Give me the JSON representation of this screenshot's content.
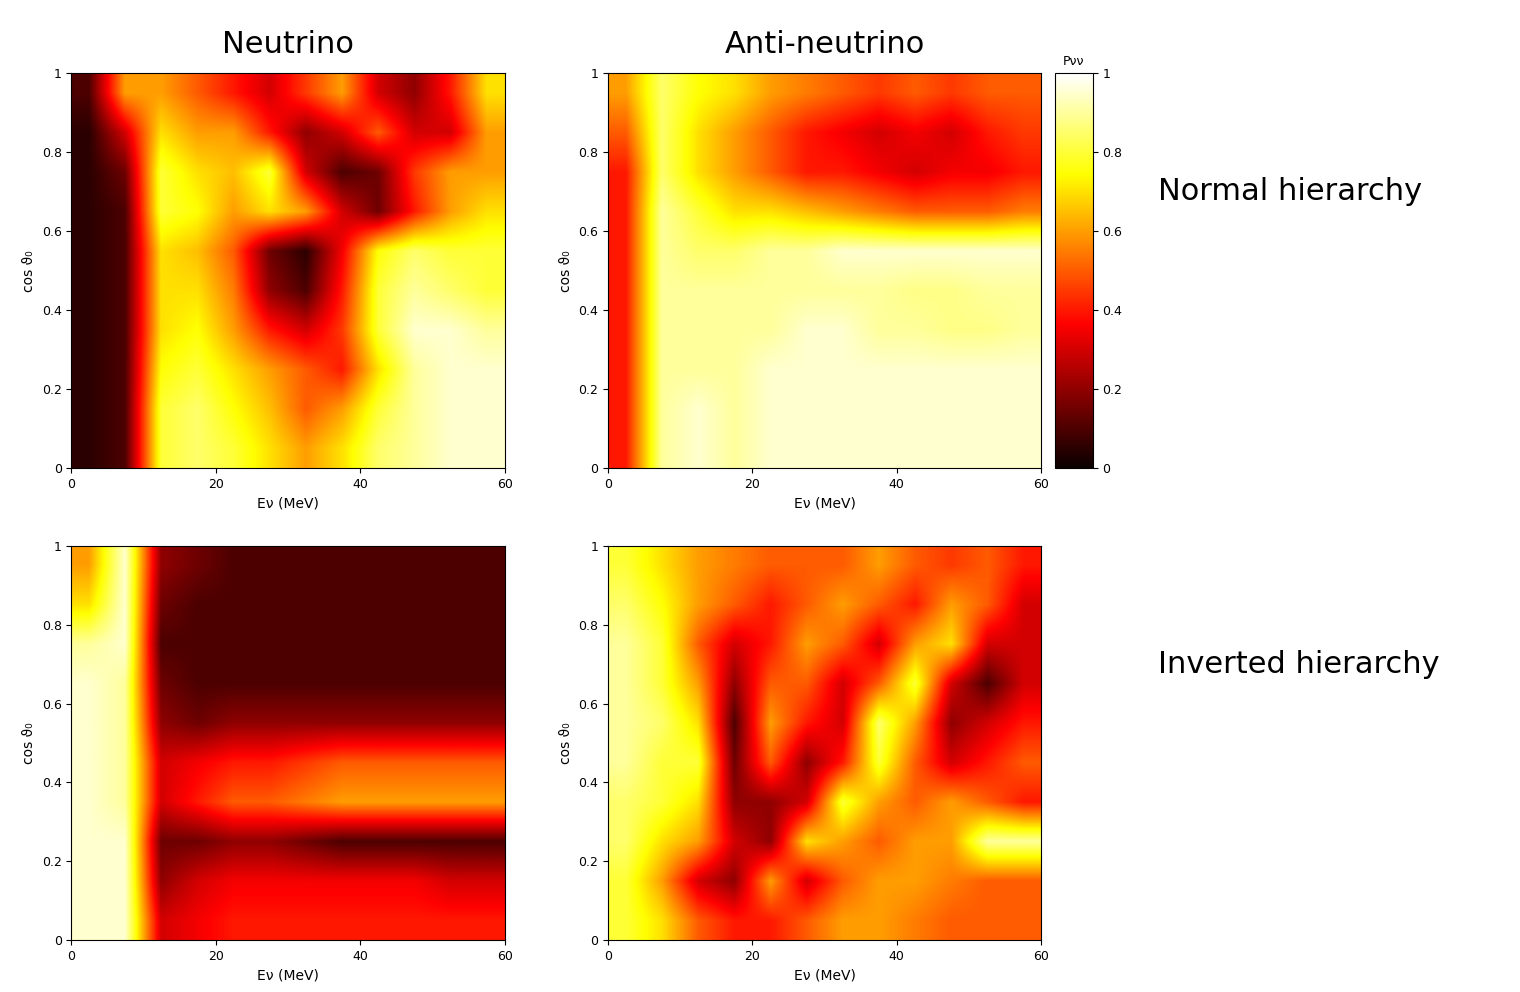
{
  "figure": {
    "column_titles": [
      "Neutrino",
      "Anti-neutrino"
    ],
    "row_titles": [
      "Normal hierarchy",
      "Inverted hierarchy"
    ],
    "colorbar": {
      "label": "Pνν",
      "range": [
        0,
        1
      ],
      "ticks": [
        0,
        0.2,
        0.4,
        0.6,
        0.8,
        1
      ]
    }
  },
  "chart_data": [
    {
      "type": "heatmap",
      "color": "hot",
      "x_label": "Eν (MeV)",
      "y_label": "cos ϑ₀",
      "xlim": [
        0,
        60
      ],
      "ylim": [
        0,
        1
      ],
      "xticks": [
        0,
        20,
        40,
        60
      ],
      "yticks": [
        0,
        0.2,
        0.4,
        0.6,
        0.8,
        1
      ],
      "cells": [
        [
          0.05,
          0.1,
          0.8,
          0.85,
          0.8,
          0.7,
          0.6,
          0.7,
          0.85,
          0.9,
          0.95,
          0.95
        ],
        [
          0.05,
          0.1,
          0.8,
          0.85,
          0.75,
          0.65,
          0.5,
          0.6,
          0.8,
          0.9,
          0.95,
          0.95
        ],
        [
          0.05,
          0.1,
          0.75,
          0.8,
          0.7,
          0.6,
          0.5,
          0.4,
          0.7,
          0.9,
          0.95,
          0.95
        ],
        [
          0.05,
          0.1,
          0.7,
          0.75,
          0.6,
          0.4,
          0.3,
          0.45,
          0.8,
          0.95,
          0.95,
          0.9
        ],
        [
          0.05,
          0.1,
          0.7,
          0.7,
          0.55,
          0.2,
          0.1,
          0.4,
          0.8,
          0.9,
          0.85,
          0.8
        ],
        [
          0.05,
          0.1,
          0.7,
          0.65,
          0.5,
          0.15,
          0.05,
          0.35,
          0.75,
          0.85,
          0.8,
          0.8
        ],
        [
          0.05,
          0.1,
          0.8,
          0.75,
          0.6,
          0.7,
          0.6,
          0.3,
          0.15,
          0.4,
          0.6,
          0.7
        ],
        [
          0.05,
          0.15,
          0.8,
          0.7,
          0.65,
          0.8,
          0.3,
          0.1,
          0.15,
          0.45,
          0.6,
          0.6
        ],
        [
          0.05,
          0.3,
          0.7,
          0.6,
          0.6,
          0.4,
          0.2,
          0.3,
          0.5,
          0.3,
          0.3,
          0.6
        ],
        [
          0.1,
          0.6,
          0.6,
          0.5,
          0.4,
          0.3,
          0.45,
          0.6,
          0.3,
          0.2,
          0.4,
          0.7
        ]
      ]
    },
    {
      "type": "heatmap",
      "color": "hot",
      "x_label": "Eν (MeV)",
      "y_label": "cos ϑ₀",
      "xlim": [
        0,
        60
      ],
      "ylim": [
        0,
        1
      ],
      "xticks": [
        0,
        20,
        40,
        60
      ],
      "yticks": [
        0,
        0.2,
        0.4,
        0.6,
        0.8,
        1
      ],
      "cells": [
        [
          0.4,
          0.9,
          0.95,
          0.9,
          0.95,
          0.95,
          0.95,
          0.95,
          0.95,
          0.95,
          0.95,
          0.95
        ],
        [
          0.4,
          0.9,
          0.95,
          0.9,
          0.95,
          0.95,
          0.95,
          0.95,
          0.95,
          0.95,
          0.95,
          0.95
        ],
        [
          0.4,
          0.9,
          0.9,
          0.9,
          0.95,
          0.95,
          0.95,
          0.95,
          0.95,
          0.95,
          0.95,
          0.95
        ],
        [
          0.4,
          0.9,
          0.9,
          0.9,
          0.9,
          0.95,
          0.95,
          0.9,
          0.9,
          0.88,
          0.88,
          0.9
        ],
        [
          0.4,
          0.9,
          0.9,
          0.9,
          0.9,
          0.9,
          0.9,
          0.9,
          0.88,
          0.88,
          0.9,
          0.9
        ],
        [
          0.4,
          0.9,
          0.85,
          0.85,
          0.9,
          0.9,
          0.95,
          0.95,
          0.95,
          0.95,
          0.95,
          0.95
        ],
        [
          0.4,
          0.9,
          0.8,
          0.7,
          0.7,
          0.65,
          0.6,
          0.55,
          0.5,
          0.5,
          0.5,
          0.55
        ],
        [
          0.4,
          0.85,
          0.7,
          0.6,
          0.5,
          0.4,
          0.4,
          0.35,
          0.3,
          0.35,
          0.35,
          0.4
        ],
        [
          0.5,
          0.85,
          0.7,
          0.6,
          0.5,
          0.4,
          0.35,
          0.3,
          0.35,
          0.3,
          0.4,
          0.45
        ],
        [
          0.6,
          0.85,
          0.75,
          0.7,
          0.6,
          0.55,
          0.5,
          0.45,
          0.5,
          0.45,
          0.5,
          0.5
        ]
      ]
    },
    {
      "type": "heatmap",
      "color": "hot",
      "x_label": "Eν (MeV)",
      "y_label": "cos ϑ₀",
      "xlim": [
        0,
        60
      ],
      "ylim": [
        0,
        1
      ],
      "xticks": [
        0,
        20,
        40,
        60
      ],
      "yticks": [
        0,
        0.2,
        0.4,
        0.6,
        0.8,
        1
      ],
      "cells": [
        [
          0.95,
          0.95,
          0.3,
          0.35,
          0.4,
          0.4,
          0.4,
          0.4,
          0.4,
          0.4,
          0.4,
          0.4
        ],
        [
          0.95,
          0.95,
          0.2,
          0.3,
          0.35,
          0.35,
          0.35,
          0.35,
          0.35,
          0.35,
          0.3,
          0.3
        ],
        [
          0.95,
          0.95,
          0.15,
          0.15,
          0.2,
          0.2,
          0.15,
          0.1,
          0.1,
          0.1,
          0.1,
          0.1
        ],
        [
          0.95,
          0.9,
          0.3,
          0.4,
          0.5,
          0.5,
          0.55,
          0.6,
          0.6,
          0.6,
          0.6,
          0.6
        ],
        [
          0.95,
          0.9,
          0.3,
          0.35,
          0.4,
          0.4,
          0.45,
          0.5,
          0.5,
          0.5,
          0.5,
          0.5
        ],
        [
          0.95,
          0.9,
          0.2,
          0.15,
          0.2,
          0.2,
          0.2,
          0.2,
          0.2,
          0.2,
          0.2,
          0.2
        ],
        [
          0.95,
          0.9,
          0.15,
          0.1,
          0.1,
          0.1,
          0.1,
          0.1,
          0.1,
          0.1,
          0.1,
          0.1
        ],
        [
          0.9,
          0.95,
          0.1,
          0.1,
          0.1,
          0.1,
          0.1,
          0.1,
          0.1,
          0.1,
          0.1,
          0.1
        ],
        [
          0.7,
          0.95,
          0.15,
          0.1,
          0.1,
          0.1,
          0.1,
          0.1,
          0.1,
          0.1,
          0.1,
          0.1
        ],
        [
          0.6,
          0.95,
          0.2,
          0.15,
          0.1,
          0.1,
          0.1,
          0.1,
          0.1,
          0.1,
          0.1,
          0.1
        ]
      ]
    },
    {
      "type": "heatmap",
      "color": "hot",
      "x_label": "Eν (MeV)",
      "y_label": "cos ϑ₀",
      "xlim": [
        0,
        60
      ],
      "ylim": [
        0,
        1
      ],
      "xticks": [
        0,
        20,
        40,
        60
      ],
      "yticks": [
        0,
        0.2,
        0.4,
        0.6,
        0.8,
        1
      ],
      "cells": [
        [
          0.8,
          0.7,
          0.5,
          0.4,
          0.4,
          0.5,
          0.6,
          0.6,
          0.55,
          0.5,
          0.5,
          0.5
        ],
        [
          0.8,
          0.6,
          0.3,
          0.2,
          0.6,
          0.3,
          0.5,
          0.6,
          0.6,
          0.55,
          0.5,
          0.5
        ],
        [
          0.85,
          0.7,
          0.6,
          0.3,
          0.2,
          0.7,
          0.6,
          0.5,
          0.6,
          0.6,
          0.9,
          0.9
        ],
        [
          0.85,
          0.8,
          0.7,
          0.2,
          0.2,
          0.3,
          0.8,
          0.6,
          0.5,
          0.6,
          0.5,
          0.4
        ],
        [
          0.9,
          0.8,
          0.8,
          0.15,
          0.5,
          0.2,
          0.4,
          0.8,
          0.5,
          0.3,
          0.4,
          0.5
        ],
        [
          0.9,
          0.85,
          0.7,
          0.1,
          0.6,
          0.4,
          0.3,
          0.85,
          0.6,
          0.2,
          0.3,
          0.4
        ],
        [
          0.9,
          0.8,
          0.6,
          0.2,
          0.5,
          0.5,
          0.3,
          0.5,
          0.8,
          0.3,
          0.1,
          0.3
        ],
        [
          0.9,
          0.8,
          0.5,
          0.3,
          0.4,
          0.6,
          0.5,
          0.3,
          0.6,
          0.7,
          0.3,
          0.3
        ],
        [
          0.85,
          0.75,
          0.6,
          0.5,
          0.4,
          0.5,
          0.6,
          0.5,
          0.4,
          0.6,
          0.5,
          0.3
        ],
        [
          0.8,
          0.7,
          0.6,
          0.55,
          0.5,
          0.5,
          0.5,
          0.6,
          0.5,
          0.45,
          0.5,
          0.4
        ]
      ]
    }
  ]
}
